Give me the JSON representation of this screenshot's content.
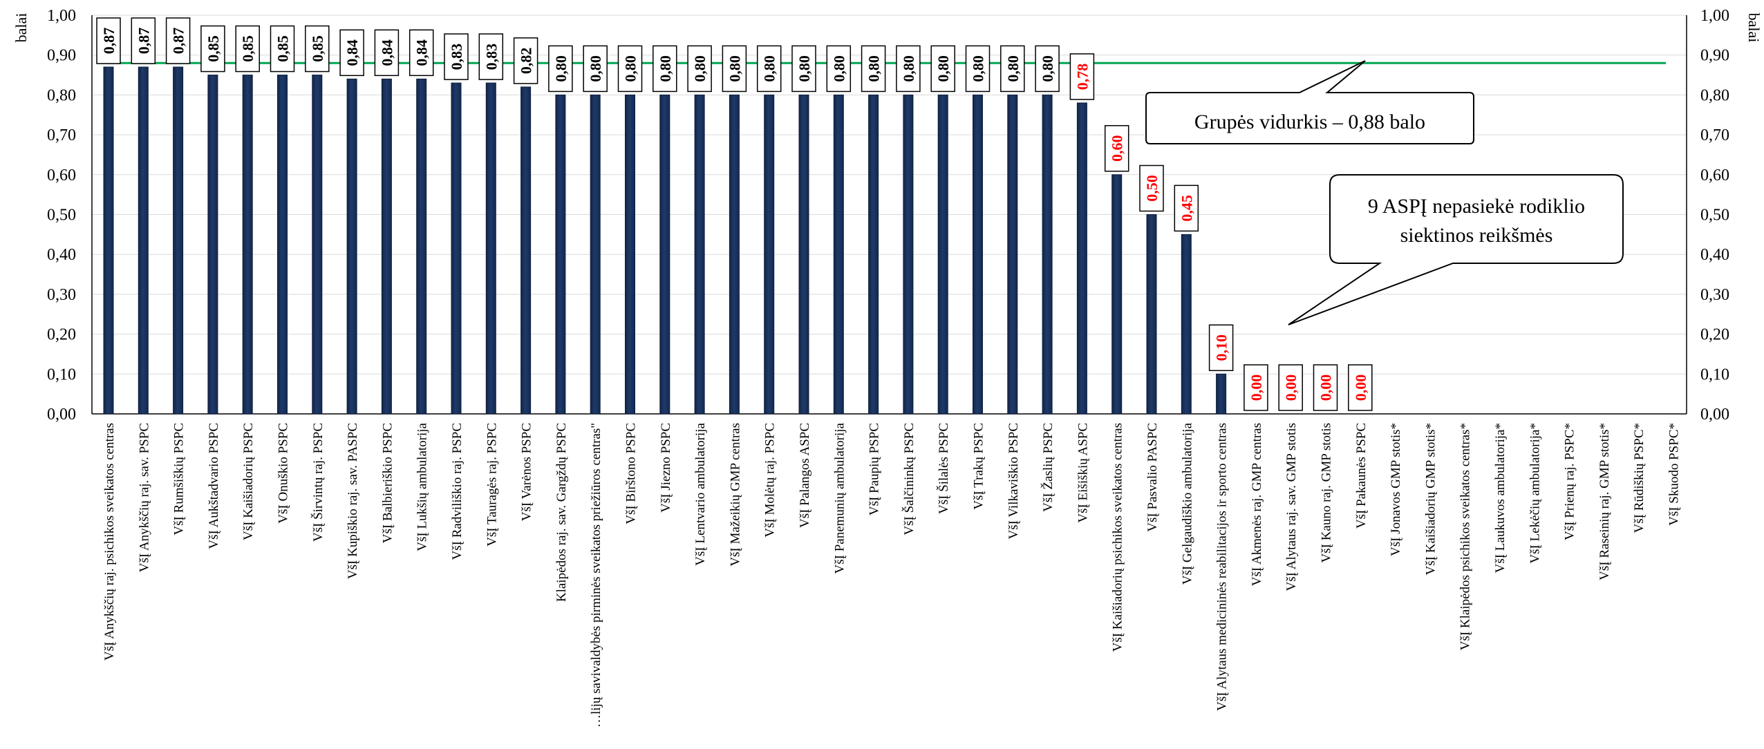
{
  "chart_data": {
    "type": "bar",
    "ylabel_left": "balai",
    "ylabel_right": "balai",
    "ylim": [
      0,
      1
    ],
    "y_ticks": [
      "0,00",
      "0,10",
      "0,20",
      "0,30",
      "0,40",
      "0,50",
      "0,60",
      "0,70",
      "0,80",
      "0,90",
      "1,00"
    ],
    "grid": true,
    "target_value": 0.88,
    "colors": {
      "bar": "#1f3a68",
      "line": "#00a651",
      "label_ok": "#000000",
      "label_bad": "#ff0000"
    },
    "categories": [
      "VšĮ Anykščių raj. psichikos sveikatos centras",
      "VšĮ Anykščių raj. sav. PSPC",
      "VšĮ Rumšiškių PSPC",
      "VšĮ Aukštadvario PSPC",
      "VšĮ Kaišiadorių PSPC",
      "VšĮ Onuškio PSPC",
      "VšĮ Širvintų raj. PSPC",
      "VšĮ Kupiškio raj. sav. PASPC",
      "VšĮ Balbieriškio PSPC",
      "VšĮ Lukšių ambulatorija",
      "VšĮ Radviliškio raj. PSPC",
      "VšĮ Tauragės raj. PSPC",
      "VšĮ Varėnos PSPC",
      "Klaipėdos raj. sav. Gargždų PSPC",
      "…lijų savivaldybės pirminės sveikatos priežiūros centras\"",
      "VšĮ Birštono PSPC",
      "VšĮ Jiezno PSPC",
      "VšĮ Lentvario ambulatorija",
      "VšĮ Mažeikių GMP centras",
      "VšĮ Molėtų raj. PSPC",
      "VšĮ Palangos ASPC",
      "VšĮ Panemunių ambulatorija",
      "VšĮ Paupių PSPC",
      "VšĮ Šalčininkų PSPC",
      "VšĮ Šilalės PSPC",
      "VšĮ Trakų PSPC",
      "VšĮ Vilkaviškio PSPC",
      "VšĮ Žaslių PSPC",
      "VšĮ Eišiškių ASPC",
      "VšĮ Kaišiadorių psichikos sveikatos centras",
      "VšĮ Pasvalio PASPC",
      "VšĮ Gelgaudiškio ambulatorija",
      "VšĮ Alytaus medicininės reabilitacijos ir sporto centras",
      "VšĮ Akmenės raj. GMP centras",
      "VšĮ Alytaus raj. sav. GMP stotis",
      "VšĮ Kauno raj. GMP stotis",
      "VšĮ Pakaunės PSPC",
      "VšĮ Jonavos GMP stotis*",
      "VšĮ Kaišiadorių GMP stotis*",
      "VšĮ Klaipėdos psichikos sveikatos centras*",
      "VšĮ Laukuvos ambulatorija*",
      "VšĮ Lekėčių ambulatorija*",
      "VšĮ Prienų raj. PSPC*",
      "VšĮ Raseinių raj. GMP stotis*",
      "VšĮ Rūdiškių PSPC*",
      "VšĮ Skuodo PSPC*"
    ],
    "values": [
      0.87,
      0.87,
      0.87,
      0.85,
      0.85,
      0.85,
      0.85,
      0.84,
      0.84,
      0.84,
      0.83,
      0.83,
      0.82,
      0.8,
      0.8,
      0.8,
      0.8,
      0.8,
      0.8,
      0.8,
      0.8,
      0.8,
      0.8,
      0.8,
      0.8,
      0.8,
      0.8,
      0.8,
      0.78,
      0.6,
      0.5,
      0.45,
      0.1,
      0,
      0,
      0,
      0,
      null,
      null,
      null,
      null,
      null,
      null,
      null,
      null,
      null
    ],
    "data_labels": [
      "0,87",
      "0,87",
      "0,87",
      "0,85",
      "0,85",
      "0,85",
      "0,85",
      "0,84",
      "0,84",
      "0,84",
      "0,83",
      "0,83",
      "0,82",
      "0,80",
      "0,80",
      "0,80",
      "0,80",
      "0,80",
      "0,80",
      "0,80",
      "0,80",
      "0,80",
      "0,80",
      "0,80",
      "0,80",
      "0,80",
      "0,80",
      "0,80",
      "0,78",
      "0,60",
      "0,50",
      "0,45",
      "0,10",
      "0,00",
      "0,00",
      "0,00",
      "0,00",
      "",
      "",
      "",
      "",
      "",
      "",
      "",
      "",
      ""
    ],
    "below_target": [
      false,
      false,
      false,
      false,
      false,
      false,
      false,
      false,
      false,
      false,
      false,
      false,
      false,
      false,
      false,
      false,
      false,
      false,
      false,
      false,
      false,
      false,
      false,
      false,
      false,
      false,
      false,
      false,
      true,
      true,
      true,
      true,
      true,
      true,
      true,
      true,
      true,
      false,
      false,
      false,
      false,
      false,
      false,
      false,
      false,
      false
    ],
    "annotations": [
      {
        "id": "group-average",
        "text": "Grupės vidurkis – 0,88 balo"
      },
      {
        "id": "not-reached",
        "lines": [
          "9 ASPĮ nepasiekė rodiklio",
          "siektinos reikšmės"
        ]
      }
    ]
  }
}
